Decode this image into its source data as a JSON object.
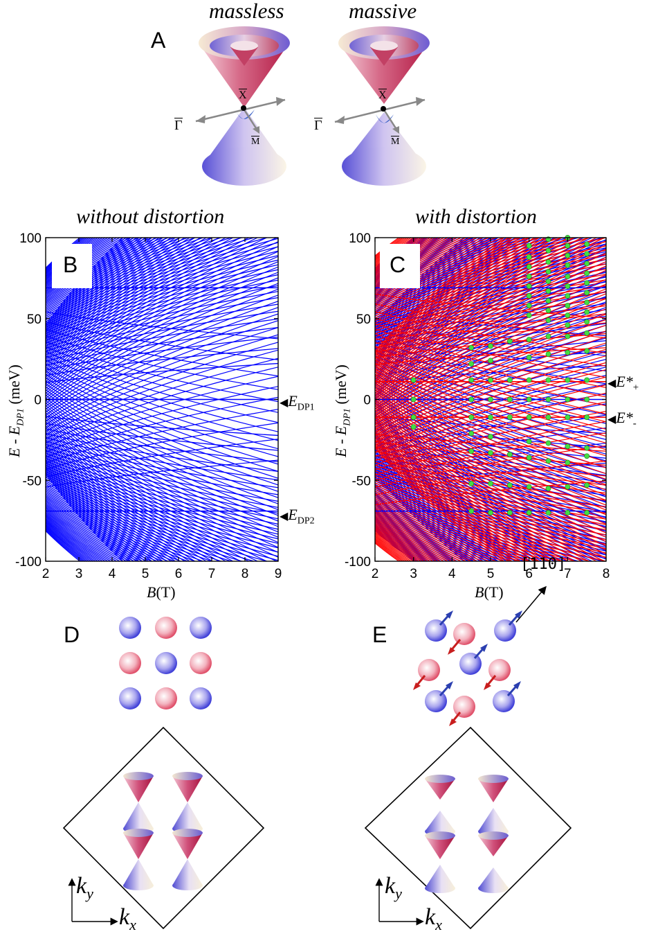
{
  "panel_a": {
    "label": "A",
    "left_title": "massless",
    "right_title": "massive",
    "gamma_label": "Γ",
    "x_label": "X",
    "m_label": "M"
  },
  "panel_b": {
    "label": "B",
    "title": "without distortion",
    "edp1_label": "E",
    "edp1_sub": "DP1",
    "edp2_label": "E",
    "edp2_sub": "DP2"
  },
  "panel_c": {
    "label": "C",
    "title": "with distortion",
    "eplus_label": "E*",
    "eplus_sub": "+",
    "eminus_label": "E*",
    "eminus_sub": "-"
  },
  "axes": {
    "ylabel_main": "E - E",
    "ylabel_sub": "DP1",
    "ylabel_unit": " (meV)",
    "xlabel_main": "B",
    "xlabel_unit": "(T)"
  },
  "panel_d": {
    "label": "D",
    "kx": "k",
    "kx_sub": "x",
    "ky": "k",
    "ky_sub": "y"
  },
  "panel_e": {
    "label": "E",
    "direction": "[110]",
    "kx": "k",
    "kx_sub": "x",
    "ky": "k",
    "ky_sub": "y"
  },
  "chart_data": [
    {
      "type": "line",
      "panel": "B",
      "title": "without distortion",
      "xlabel": "B(T)",
      "ylabel": "E - E_DP1 (meV)",
      "xlim": [
        2,
        9
      ],
      "ylim": [
        -100,
        100
      ],
      "xticks": [
        "2",
        "3",
        "4",
        "5",
        "6",
        "7",
        "8",
        "9"
      ],
      "yticks": [
        "100",
        "50",
        "0",
        "-50",
        "-100"
      ],
      "series_color": "#0000ff",
      "flat_levels": [
        0,
        -69,
        69
      ]
    },
    {
      "type": "line",
      "panel": "C",
      "title": "with distortion",
      "xlabel": "B(T)",
      "ylabel": "E - E_DP1 (meV)",
      "xlim": [
        2,
        8
      ],
      "ylim": [
        -100,
        100
      ],
      "xticks": [
        "2",
        "3",
        "4",
        "5",
        "6",
        "7",
        "8"
      ],
      "yticks": [
        "100",
        "50",
        "0",
        "-50",
        "-100"
      ],
      "series_colors": [
        "#0000ff",
        "#ff0000"
      ],
      "flat_levels_red": [
        11,
        -11
      ],
      "points_color": "#44dd44",
      "points": [
        {
          "x": 3,
          "y": 12
        },
        {
          "x": 3,
          "y": 0
        },
        {
          "x": 3,
          "y": -11
        },
        {
          "x": 3,
          "y": -17
        },
        {
          "x": 4.5,
          "y": 32
        },
        {
          "x": 4.5,
          "y": 22
        },
        {
          "x": 4.5,
          "y": 12
        },
        {
          "x": 4.5,
          "y": 0
        },
        {
          "x": 4.5,
          "y": -11
        },
        {
          "x": 4.5,
          "y": -21
        },
        {
          "x": 4.5,
          "y": -32
        },
        {
          "x": 4.5,
          "y": -52
        },
        {
          "x": 4.5,
          "y": -69
        },
        {
          "x": 5,
          "y": 33
        },
        {
          "x": 5,
          "y": 24
        },
        {
          "x": 5,
          "y": 12
        },
        {
          "x": 5,
          "y": 0
        },
        {
          "x": 5,
          "y": -11
        },
        {
          "x": 5,
          "y": -23
        },
        {
          "x": 5,
          "y": -33
        },
        {
          "x": 5,
          "y": -52
        },
        {
          "x": 5,
          "y": -70
        },
        {
          "x": 5.5,
          "y": 36
        },
        {
          "x": 5.5,
          "y": 12
        },
        {
          "x": 5.5,
          "y": 0
        },
        {
          "x": 5.5,
          "y": -11
        },
        {
          "x": 5.5,
          "y": -34
        },
        {
          "x": 5.5,
          "y": -53
        },
        {
          "x": 5.5,
          "y": -70
        },
        {
          "x": 6,
          "y": 95
        },
        {
          "x": 6,
          "y": 88
        },
        {
          "x": 6,
          "y": 82
        },
        {
          "x": 6,
          "y": 76
        },
        {
          "x": 6,
          "y": 70
        },
        {
          "x": 6,
          "y": 64
        },
        {
          "x": 6,
          "y": 58
        },
        {
          "x": 6,
          "y": 52
        },
        {
          "x": 6,
          "y": 37
        },
        {
          "x": 6,
          "y": 26
        },
        {
          "x": 6,
          "y": 12
        },
        {
          "x": 6,
          "y": 0
        },
        {
          "x": 6,
          "y": -11
        },
        {
          "x": 6,
          "y": -26
        },
        {
          "x": 6,
          "y": -36
        },
        {
          "x": 6,
          "y": -54
        },
        {
          "x": 6,
          "y": -70
        },
        {
          "x": 6.5,
          "y": 99
        },
        {
          "x": 6.5,
          "y": 92
        },
        {
          "x": 6.5,
          "y": 85
        },
        {
          "x": 6.5,
          "y": 79
        },
        {
          "x": 6.5,
          "y": 73
        },
        {
          "x": 6.5,
          "y": 67
        },
        {
          "x": 6.5,
          "y": 61
        },
        {
          "x": 6.5,
          "y": 55
        },
        {
          "x": 6.5,
          "y": 49
        },
        {
          "x": 6.5,
          "y": 39
        },
        {
          "x": 6.5,
          "y": 28
        },
        {
          "x": 6.5,
          "y": 12
        },
        {
          "x": 6.5,
          "y": 0
        },
        {
          "x": 6.5,
          "y": -11
        },
        {
          "x": 6.5,
          "y": -27
        },
        {
          "x": 6.5,
          "y": -38
        },
        {
          "x": 6.5,
          "y": -55
        },
        {
          "x": 6.5,
          "y": -70
        },
        {
          "x": 7,
          "y": 100
        },
        {
          "x": 7,
          "y": 95
        },
        {
          "x": 7,
          "y": 89
        },
        {
          "x": 7,
          "y": 83
        },
        {
          "x": 7,
          "y": 76
        },
        {
          "x": 7,
          "y": 70
        },
        {
          "x": 7,
          "y": 64
        },
        {
          "x": 7,
          "y": 58
        },
        {
          "x": 7,
          "y": 52
        },
        {
          "x": 7,
          "y": 46
        },
        {
          "x": 7,
          "y": 39
        },
        {
          "x": 7,
          "y": 29
        },
        {
          "x": 7,
          "y": 12
        },
        {
          "x": 7,
          "y": 0
        },
        {
          "x": 7,
          "y": -11
        },
        {
          "x": 7,
          "y": -29
        },
        {
          "x": 7,
          "y": -39
        },
        {
          "x": 7,
          "y": -54
        },
        {
          "x": 7,
          "y": -70
        },
        {
          "x": 7.5,
          "y": 96
        },
        {
          "x": 7.5,
          "y": 90
        },
        {
          "x": 7.5,
          "y": 84
        },
        {
          "x": 7.5,
          "y": 78
        },
        {
          "x": 7.5,
          "y": 72
        },
        {
          "x": 7.5,
          "y": 66
        },
        {
          "x": 7.5,
          "y": 60
        },
        {
          "x": 7.5,
          "y": 54
        },
        {
          "x": 7.5,
          "y": 48
        },
        {
          "x": 7.5,
          "y": 41
        },
        {
          "x": 7.5,
          "y": 30
        },
        {
          "x": 7.5,
          "y": 12
        },
        {
          "x": 7.5,
          "y": 0
        },
        {
          "x": 7.5,
          "y": -11
        },
        {
          "x": 7.5,
          "y": -30
        },
        {
          "x": 7.5,
          "y": -35
        },
        {
          "x": 7.5,
          "y": -53
        },
        {
          "x": 7.5,
          "y": -70
        }
      ]
    }
  ]
}
